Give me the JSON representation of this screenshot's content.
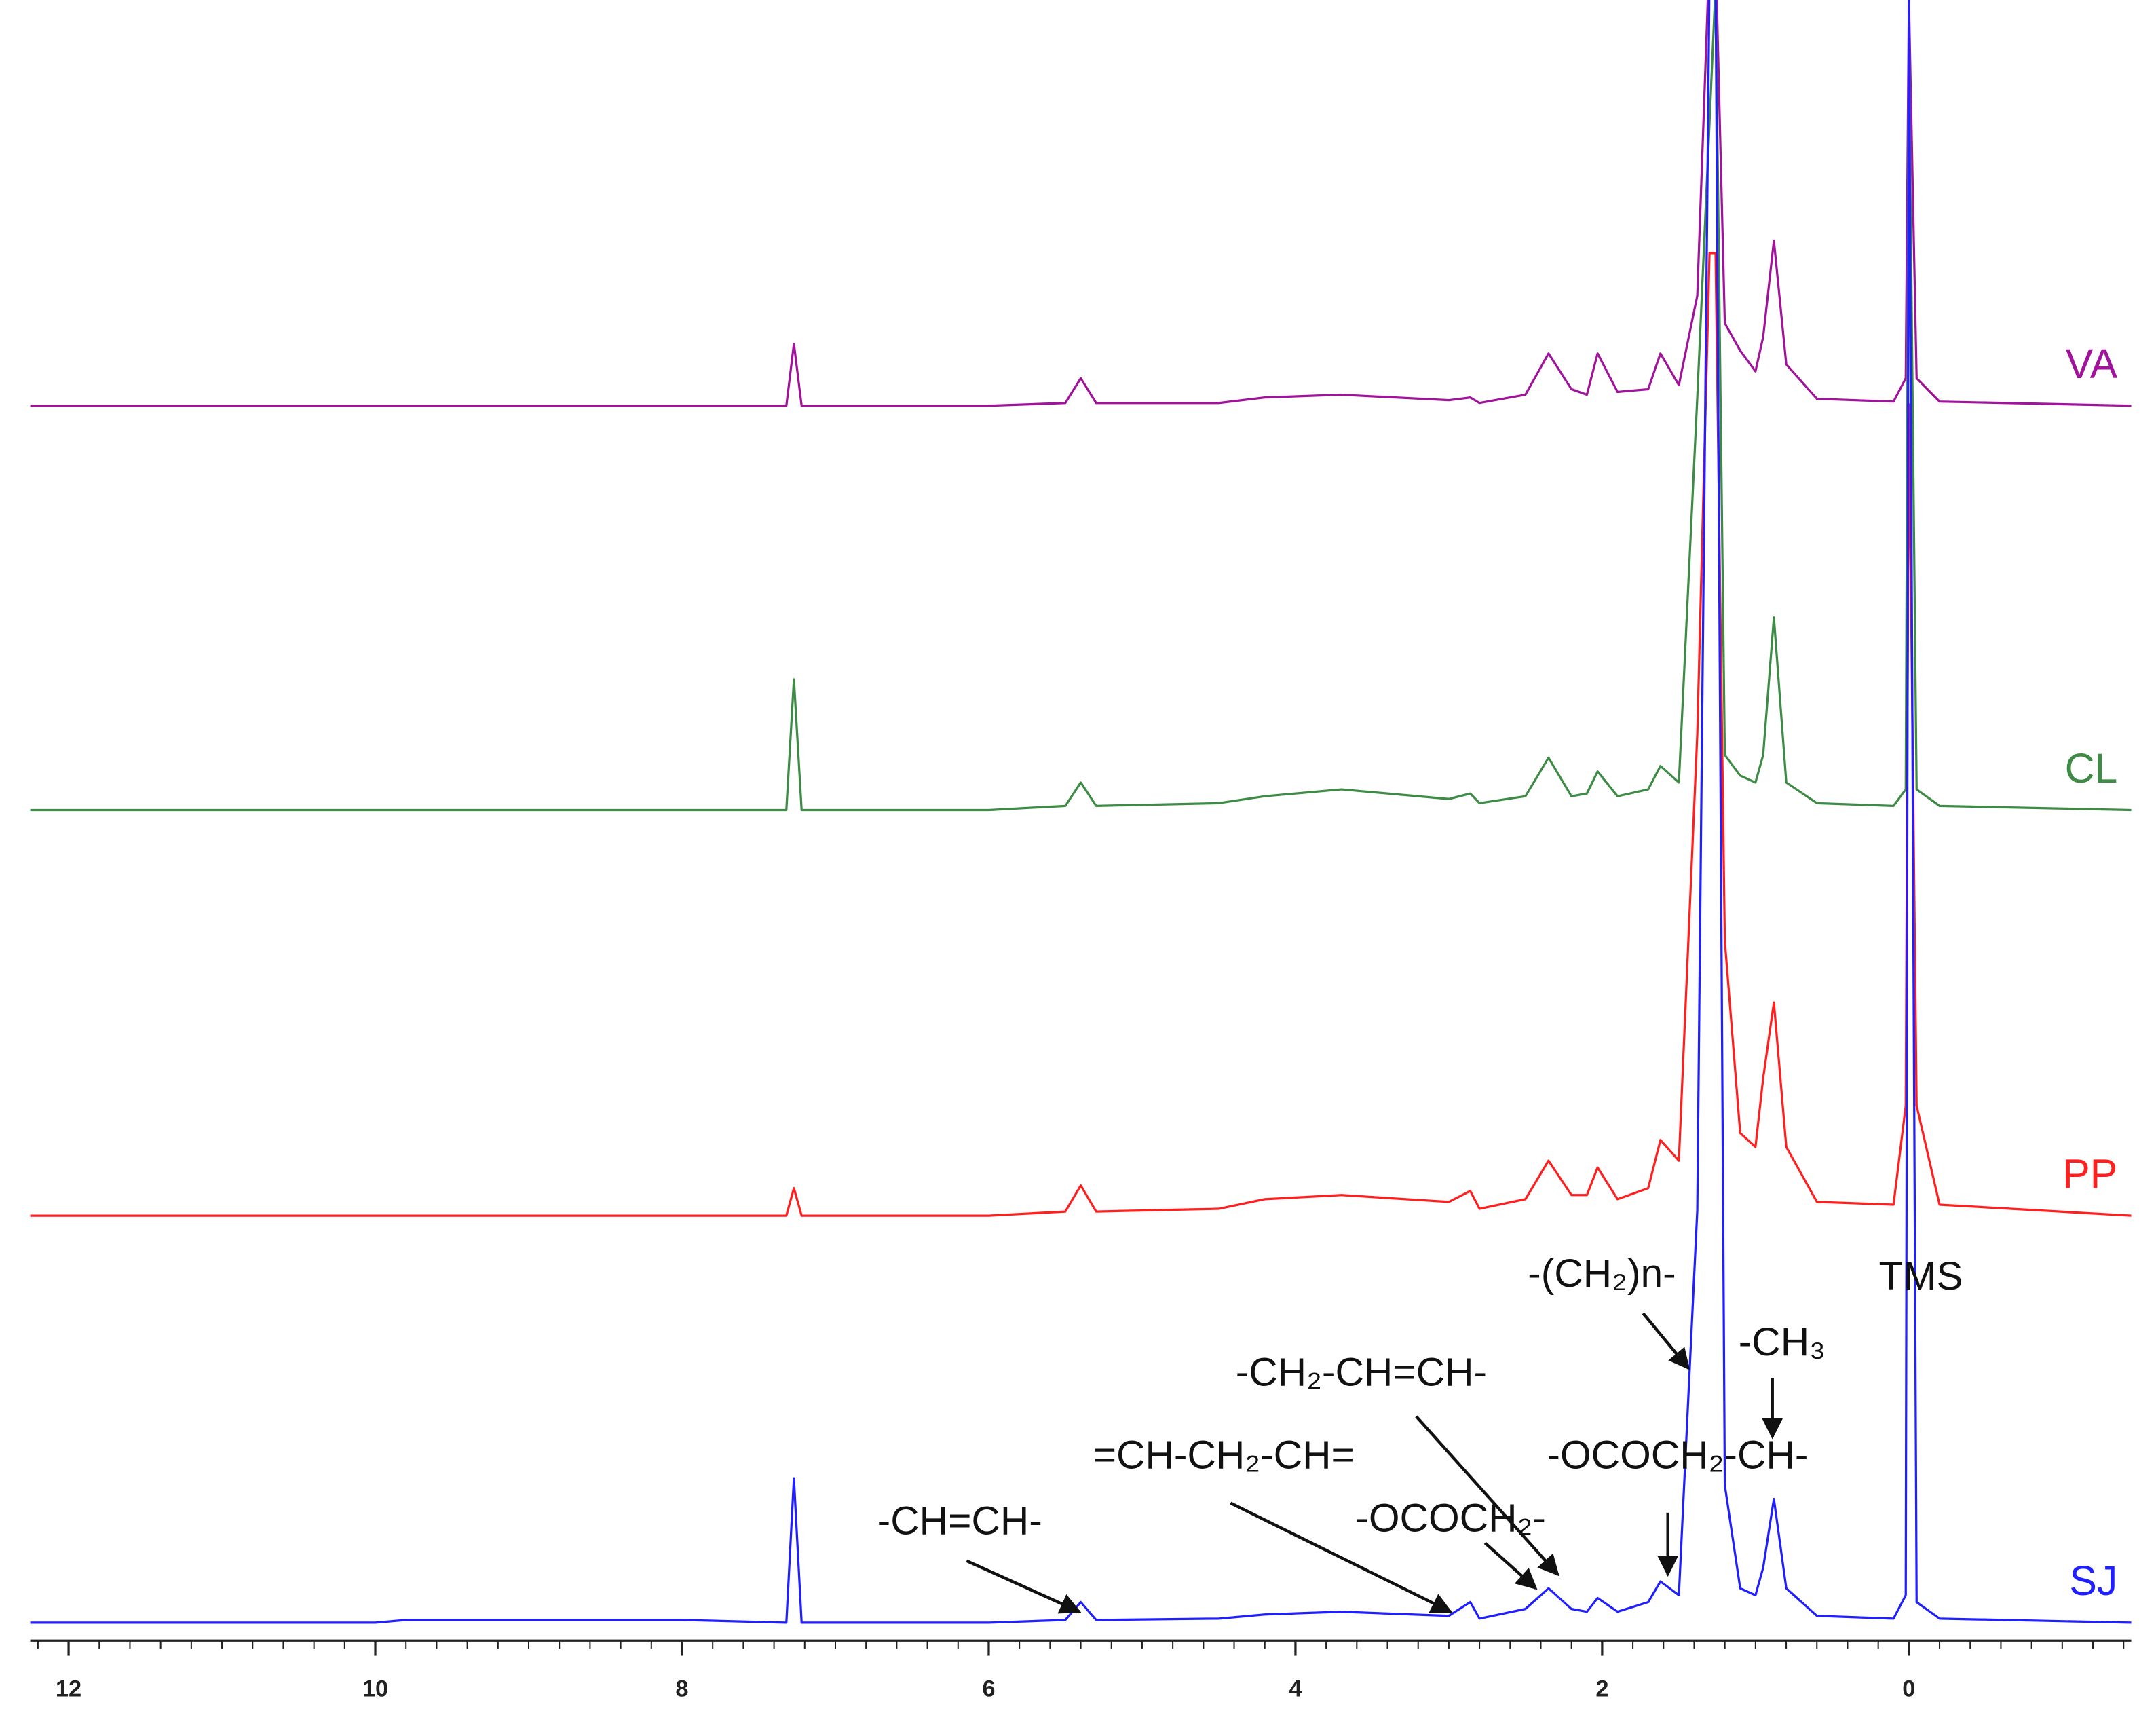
{
  "chart_data": {
    "type": "line",
    "x": [
      12.25,
      10,
      9.8,
      8,
      7.32,
      7.27,
      7.22,
      6,
      5.5,
      5.4,
      5.3,
      4.5,
      4.2,
      3.7,
      3.0,
      2.86,
      2.8,
      2.5,
      2.35,
      2.2,
      2.1,
      2.03,
      1.9,
      1.7,
      1.62,
      1.5,
      1.38,
      1.3,
      1.26,
      1.2,
      1.1,
      1.0,
      0.95,
      0.88,
      0.8,
      0.6,
      0.1,
      0.02,
      0.0,
      -0.05,
      -0.2,
      -1.45
    ],
    "xlim": [
      12.25,
      -1.45
    ],
    "xticks": [
      12,
      10,
      8,
      6,
      4,
      2,
      0
    ],
    "series": [
      {
        "name": "VA",
        "color": "#a0139b",
        "values": [
          0,
          0,
          0,
          0,
          0,
          45,
          0,
          0,
          2,
          20,
          2,
          2,
          6,
          8,
          4,
          6,
          2,
          8,
          38,
          12,
          8,
          38,
          10,
          12,
          38,
          15,
          80,
          330,
          330,
          60,
          40,
          25,
          50,
          120,
          30,
          5,
          3,
          20,
          295,
          20,
          3,
          0
        ]
      },
      {
        "name": "CL",
        "color": "#3d8b45",
        "values": [
          0,
          0,
          0,
          0,
          0,
          95,
          0,
          0,
          3,
          20,
          3,
          5,
          10,
          15,
          8,
          12,
          5,
          10,
          38,
          10,
          12,
          28,
          10,
          15,
          32,
          20,
          300,
          500,
          600,
          40,
          25,
          20,
          40,
          140,
          20,
          5,
          3,
          15,
          560,
          15,
          3,
          0
        ]
      },
      {
        "name": "PP",
        "color": "#ff1f1f",
        "values": [
          0,
          0,
          0,
          0,
          0,
          20,
          0,
          0,
          3,
          22,
          3,
          5,
          12,
          15,
          10,
          18,
          5,
          12,
          40,
          15,
          15,
          35,
          12,
          20,
          55,
          40,
          350,
          700,
          700,
          200,
          60,
          50,
          100,
          155,
          50,
          10,
          8,
          80,
          590,
          80,
          8,
          0
        ]
      },
      {
        "name": "SJ",
        "color": "#1f1fff",
        "values": [
          0,
          0,
          2,
          2,
          0,
          105,
          0,
          0,
          2,
          15,
          2,
          3,
          6,
          8,
          5,
          15,
          3,
          10,
          25,
          10,
          8,
          18,
          8,
          15,
          30,
          20,
          300,
          1200,
          1200,
          100,
          25,
          20,
          40,
          90,
          25,
          5,
          3,
          20,
          1180,
          15,
          3,
          0
        ]
      }
    ],
    "annotations": [
      "-(CH₂)n-",
      "TMS",
      "-CH₃",
      "-CH₂-CH=CH-",
      "-OCOCH₂-CH-",
      "=CH-CH₂-CH=",
      "-OCOCH₂-",
      "-CH=CH-"
    ]
  }
}
